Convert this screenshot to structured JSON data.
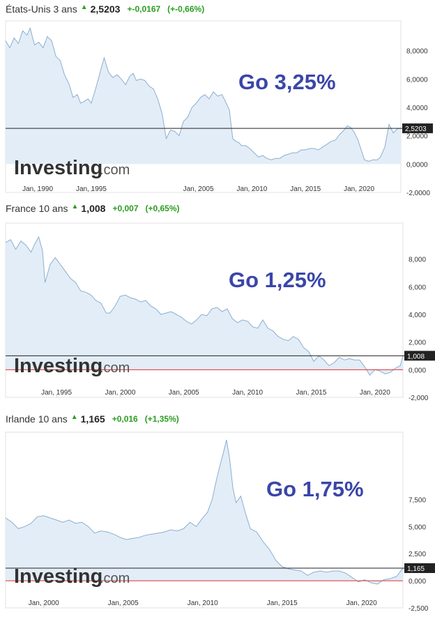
{
  "chart_data": [
    {
      "type": "area",
      "header": {
        "name": "États-Unis 3 ans",
        "price": "2,5203",
        "change": "+-0,0167",
        "change_pct": "(+-0,66%)"
      },
      "annotation": "Go 3,25%",
      "last_value": 2.5203,
      "last_label": "2,5203",
      "x_range": [
        1987.0,
        2023.9
      ],
      "ylim": [
        -2.0,
        10.1
      ],
      "y_ticks": [
        8,
        6,
        4,
        2,
        0,
        -2
      ],
      "y_tick_labels": [
        "8,0000",
        "6,0000",
        "4,0000",
        "2,0000",
        "0,0000",
        "-2,0000"
      ],
      "x_ticks": [
        1990,
        1995,
        2005,
        2010,
        2015,
        2020
      ],
      "x_tick_labels": [
        "Jan, 1990",
        "Jan, 1995",
        "Jan, 2005",
        "Jan, 2010",
        "Jan, 2015",
        "Jan, 2020"
      ],
      "x": [
        1987.0,
        1987.4,
        1987.8,
        1988.2,
        1988.6,
        1989.0,
        1989.3,
        1989.7,
        1990.1,
        1990.5,
        1990.9,
        1991.3,
        1991.7,
        1992.1,
        1992.5,
        1992.9,
        1993.3,
        1993.7,
        1994.0,
        1994.3,
        1994.7,
        1995.0,
        1995.4,
        1995.8,
        1996.2,
        1996.6,
        1997.0,
        1997.4,
        1997.8,
        1998.2,
        1998.6,
        1998.9,
        1999.2,
        1999.6,
        2000.0,
        2000.4,
        2000.8,
        2001.2,
        2001.6,
        2002.0,
        2002.4,
        2002.8,
        2003.2,
        2003.6,
        2004.0,
        2004.4,
        2004.8,
        2005.2,
        2005.6,
        2006.0,
        2006.4,
        2006.8,
        2007.2,
        2007.6,
        2007.9,
        2008.2,
        2008.5,
        2008.8,
        2009.0,
        2009.4,
        2009.8,
        2010.2,
        2010.6,
        2011.0,
        2011.4,
        2011.8,
        2012.2,
        2012.6,
        2013.0,
        2013.4,
        2013.8,
        2014.2,
        2014.6,
        2015.0,
        2015.4,
        2015.8,
        2016.2,
        2016.6,
        2017.0,
        2017.4,
        2017.8,
        2018.2,
        2018.6,
        2018.9,
        2019.2,
        2019.5,
        2019.9,
        2020.2,
        2020.5,
        2020.9,
        2021.3,
        2021.7,
        2022.0,
        2022.4,
        2022.8,
        2023.2,
        2023.6,
        2023.9
      ],
      "values": [
        8.7,
        8.2,
        8.9,
        8.5,
        9.4,
        9.1,
        9.6,
        8.4,
        8.6,
        8.2,
        9.0,
        8.7,
        7.6,
        7.3,
        6.3,
        5.7,
        4.7,
        4.9,
        4.3,
        4.4,
        4.6,
        4.3,
        5.3,
        6.4,
        7.5,
        6.5,
        6.1,
        6.3,
        6.0,
        5.6,
        6.2,
        6.4,
        5.9,
        6.0,
        5.9,
        5.5,
        5.3,
        4.6,
        3.6,
        1.8,
        2.4,
        2.3,
        2.0,
        3.0,
        3.3,
        4.0,
        4.3,
        4.7,
        4.9,
        4.6,
        5.1,
        4.8,
        4.9,
        4.3,
        3.8,
        1.8,
        1.6,
        1.5,
        1.3,
        1.3,
        1.1,
        0.8,
        0.5,
        0.6,
        0.4,
        0.3,
        0.4,
        0.4,
        0.6,
        0.7,
        0.8,
        0.8,
        1.0,
        1.0,
        1.1,
        1.1,
        1.0,
        1.2,
        1.4,
        1.6,
        1.7,
        2.1,
        2.4,
        2.7,
        2.6,
        2.3,
        1.7,
        1.0,
        0.3,
        0.2,
        0.3,
        0.3,
        0.5,
        1.2,
        2.8,
        2.2,
        2.5,
        2.52
      ]
    },
    {
      "type": "area",
      "header": {
        "name": "France 10 ans",
        "price": "1,008",
        "change": "+0,007",
        "change_pct": "(+0,65%)"
      },
      "annotation": "Go 1,25%",
      "last_value": 1.008,
      "last_label": "1,008",
      "x_range": [
        1991.0,
        2022.2
      ],
      "ylim": [
        -2.0,
        10.6
      ],
      "y_ticks": [
        8,
        6,
        4,
        2,
        0,
        -2
      ],
      "y_tick_labels": [
        "8,000",
        "6,000",
        "4,000",
        "2,000",
        "0,000",
        "-2,000"
      ],
      "x_ticks": [
        1995,
        2000,
        2005,
        2010,
        2015,
        2020
      ],
      "x_tick_labels": [
        "Jan, 1995",
        "Jan, 2000",
        "Jan, 2005",
        "Jan, 2010",
        "Jan, 2015",
        "Jan, 2020"
      ],
      "x": [
        1991.0,
        1991.4,
        1991.8,
        1992.2,
        1992.6,
        1993.0,
        1993.3,
        1993.6,
        1993.9,
        1994.1,
        1994.5,
        1994.9,
        1995.3,
        1995.7,
        1996.1,
        1996.5,
        1996.9,
        1997.3,
        1997.7,
        1998.1,
        1998.5,
        1998.9,
        1999.2,
        1999.6,
        2000.0,
        2000.4,
        2000.8,
        2001.2,
        2001.6,
        2002.0,
        2002.4,
        2002.8,
        2003.2,
        2003.6,
        2004.0,
        2004.4,
        2004.8,
        2005.2,
        2005.6,
        2006.0,
        2006.4,
        2006.8,
        2007.2,
        2007.6,
        2008.0,
        2008.4,
        2008.8,
        2009.2,
        2009.6,
        2010.0,
        2010.4,
        2010.8,
        2011.2,
        2011.6,
        2012.0,
        2012.4,
        2012.8,
        2013.2,
        2013.6,
        2014.0,
        2014.4,
        2014.8,
        2015.2,
        2015.6,
        2016.0,
        2016.4,
        2016.8,
        2017.2,
        2017.6,
        2018.0,
        2018.4,
        2018.8,
        2019.2,
        2019.6,
        2020.0,
        2020.4,
        2020.8,
        2021.2,
        2021.6,
        2022.0,
        2022.2
      ],
      "values": [
        9.2,
        9.4,
        8.7,
        9.3,
        9.0,
        8.5,
        9.1,
        9.6,
        8.6,
        6.3,
        7.6,
        8.1,
        7.6,
        7.1,
        6.6,
        6.3,
        5.7,
        5.6,
        5.4,
        5.0,
        4.8,
        4.1,
        4.1,
        4.6,
        5.3,
        5.4,
        5.2,
        5.1,
        4.9,
        5.0,
        4.6,
        4.4,
        4.0,
        4.1,
        4.2,
        4.0,
        3.8,
        3.5,
        3.3,
        3.6,
        4.0,
        3.9,
        4.4,
        4.5,
        4.2,
        4.4,
        3.7,
        3.4,
        3.6,
        3.5,
        3.1,
        3.0,
        3.6,
        3.0,
        2.8,
        2.4,
        2.2,
        2.1,
        2.4,
        2.2,
        1.6,
        1.3,
        0.6,
        1.0,
        0.7,
        0.3,
        0.5,
        0.9,
        0.7,
        0.8,
        0.7,
        0.7,
        0.2,
        -0.4,
        0.0,
        -0.1,
        -0.3,
        -0.2,
        0.1,
        0.3,
        1.0
      ]
    },
    {
      "type": "area",
      "header": {
        "name": "Irlande 10 ans",
        "price": "1,165",
        "change": "+0,016",
        "change_pct": "(+1,35%)"
      },
      "annotation": "Go 1,75%",
      "last_value": 1.165,
      "last_label": "1,165",
      "x_range": [
        1997.6,
        2022.6
      ],
      "ylim": [
        -2.5,
        13.7
      ],
      "y_ticks": [
        7.5,
        5.0,
        2.5,
        0.0,
        -2.5
      ],
      "y_tick_labels": [
        "7,500",
        "5,000",
        "2,500",
        "0,000",
        "-2,500"
      ],
      "x_ticks": [
        2000,
        2005,
        2010,
        2015,
        2020
      ],
      "x_tick_labels": [
        "Jan, 2000",
        "Jan, 2005",
        "Jan, 2010",
        "Jan, 2015",
        "Jan, 2020"
      ],
      "x": [
        1997.6,
        1998.0,
        1998.4,
        1998.8,
        1999.2,
        1999.6,
        2000.0,
        2000.4,
        2000.8,
        2001.2,
        2001.6,
        2002.0,
        2002.4,
        2002.8,
        2003.2,
        2003.6,
        2004.0,
        2004.4,
        2004.8,
        2005.2,
        2005.6,
        2006.0,
        2006.4,
        2006.8,
        2007.2,
        2007.6,
        2008.0,
        2008.4,
        2008.8,
        2009.2,
        2009.6,
        2010.0,
        2010.3,
        2010.6,
        2010.9,
        2011.1,
        2011.3,
        2011.5,
        2011.7,
        2011.9,
        2012.1,
        2012.4,
        2012.7,
        2013.0,
        2013.4,
        2013.8,
        2014.2,
        2014.6,
        2015.0,
        2015.4,
        2015.8,
        2016.2,
        2016.6,
        2017.0,
        2017.4,
        2017.8,
        2018.2,
        2018.6,
        2019.0,
        2019.4,
        2019.8,
        2020.2,
        2020.6,
        2021.0,
        2021.4,
        2021.8,
        2022.2,
        2022.6
      ],
      "values": [
        5.8,
        5.4,
        4.8,
        5.0,
        5.3,
        5.9,
        6.0,
        5.8,
        5.6,
        5.4,
        5.6,
        5.3,
        5.4,
        5.0,
        4.4,
        4.6,
        4.5,
        4.3,
        4.0,
        3.8,
        3.9,
        4.0,
        4.2,
        4.3,
        4.4,
        4.5,
        4.7,
        4.6,
        4.8,
        5.4,
        5.0,
        5.8,
        6.3,
        7.5,
        9.5,
        10.7,
        11.8,
        13.0,
        11.2,
        8.6,
        7.2,
        7.8,
        6.2,
        4.8,
        4.5,
        3.6,
        2.9,
        1.9,
        1.3,
        1.1,
        1.0,
        0.9,
        0.5,
        0.8,
        0.9,
        0.8,
        0.9,
        0.9,
        0.7,
        0.3,
        -0.1,
        0.1,
        -0.2,
        -0.3,
        0.1,
        0.2,
        0.4,
        1.17
      ]
    }
  ],
  "watermark": {
    "brand": "Investing",
    "suffix": ".com"
  }
}
